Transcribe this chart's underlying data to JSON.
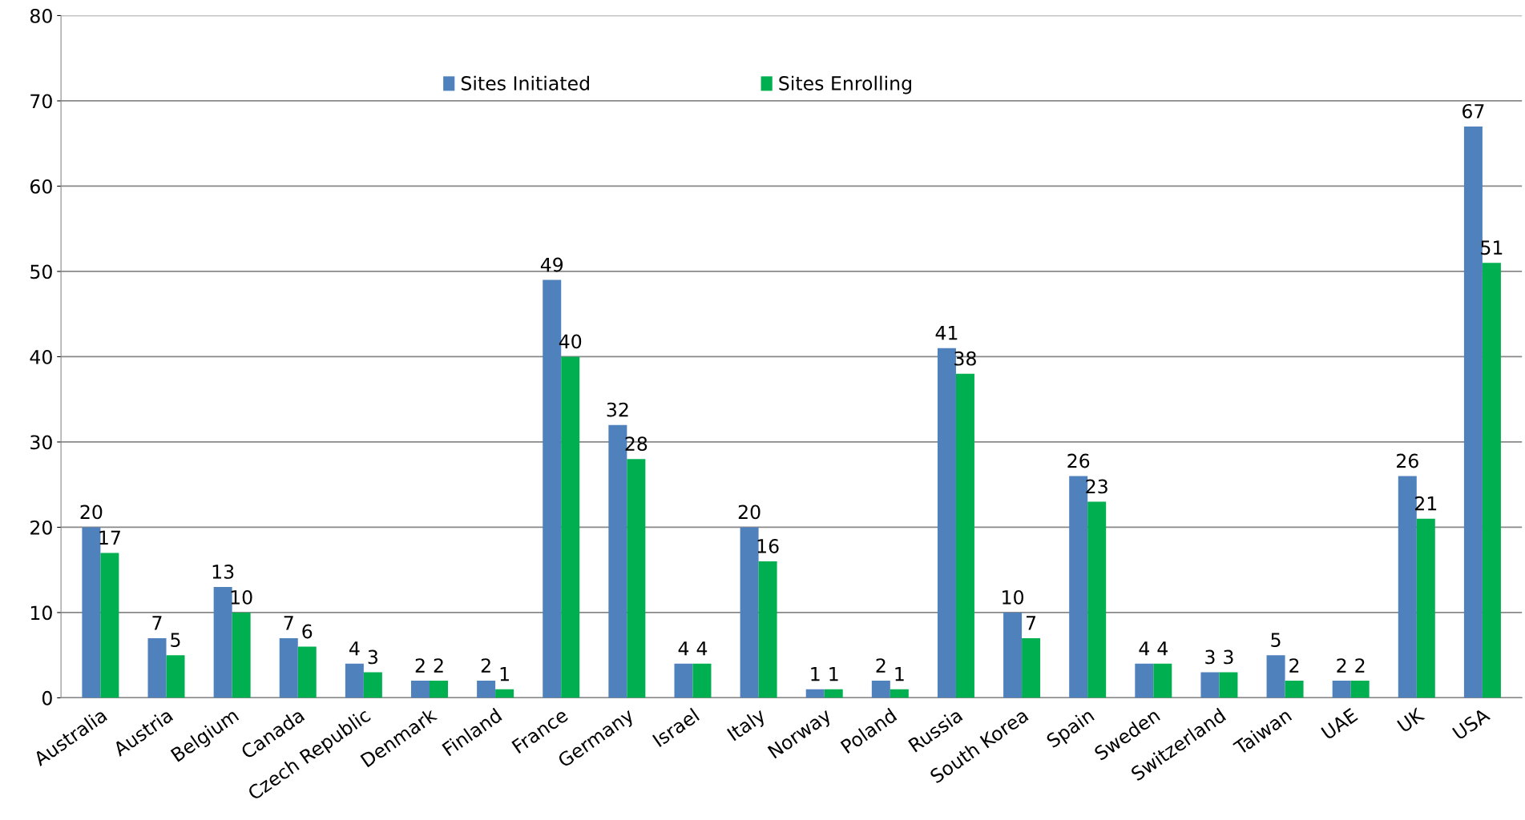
{
  "chart_data": {
    "type": "bar",
    "categories": [
      "Australia",
      "Austria",
      "Belgium",
      "Canada",
      "Czech Republic",
      "Denmark",
      "Finland",
      "France",
      "Germany",
      "Israel",
      "Italy",
      "Norway",
      "Poland",
      "Russia",
      "South Korea",
      "Spain",
      "Sweden",
      "Switzerland",
      "Taiwan",
      "UAE",
      "UK",
      "USA"
    ],
    "series": [
      {
        "name": "Sites Initiated",
        "color": "#4f81bd",
        "values": [
          20,
          7,
          13,
          7,
          4,
          2,
          2,
          49,
          32,
          4,
          20,
          1,
          2,
          41,
          10,
          26,
          4,
          3,
          5,
          2,
          26,
          67
        ]
      },
      {
        "name": "Sites Enrolling",
        "color": "#00b050",
        "values": [
          17,
          5,
          10,
          6,
          3,
          2,
          1,
          40,
          28,
          4,
          16,
          1,
          1,
          38,
          7,
          23,
          4,
          3,
          2,
          2,
          21,
          51
        ]
      }
    ],
    "ylim": [
      0,
      80
    ],
    "yticks": [
      0,
      10,
      20,
      30,
      40,
      50,
      60,
      70,
      80
    ],
    "grid": "y",
    "legend": "top",
    "data_labels": true
  }
}
